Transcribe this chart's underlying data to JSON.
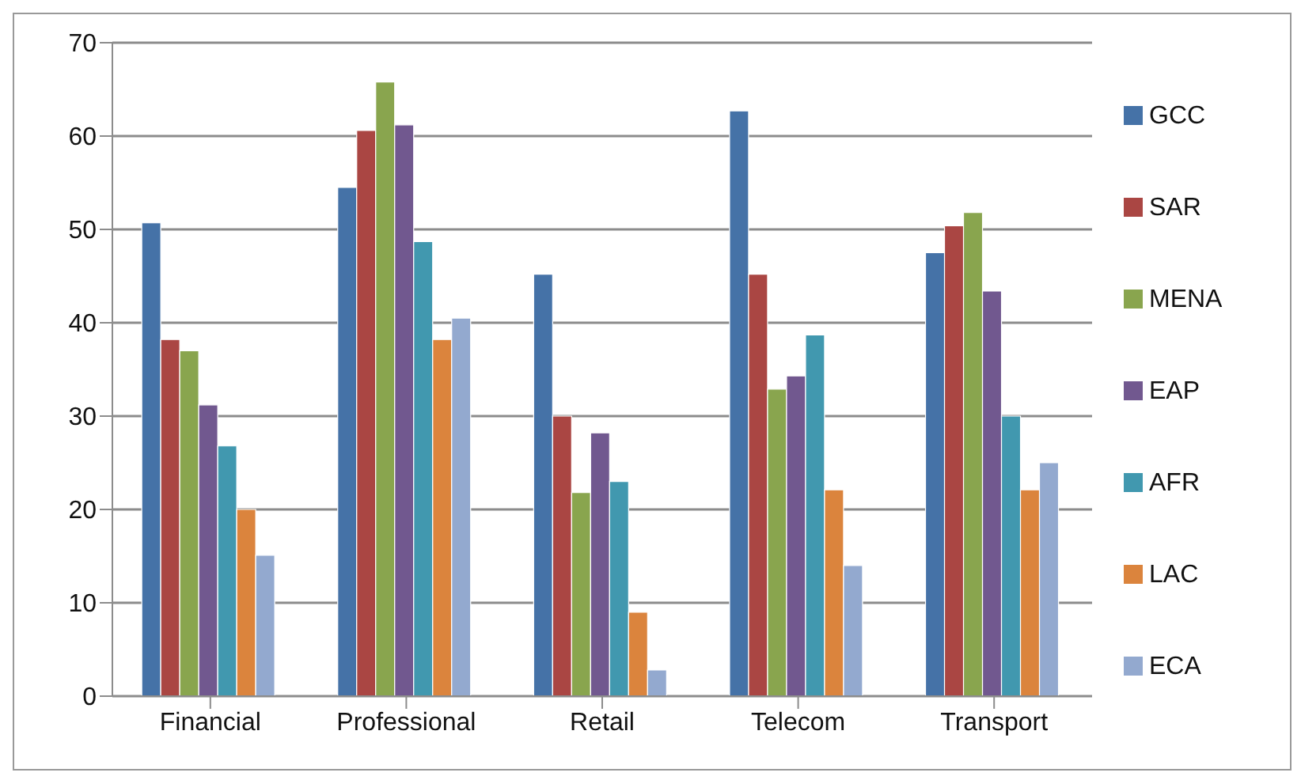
{
  "chart_data": {
    "type": "bar",
    "categories": [
      "Financial",
      "Professional",
      "Retail",
      "Telecom",
      "Transport"
    ],
    "series": [
      {
        "name": "GCC",
        "color": "#4572a7",
        "values": [
          50.7,
          54.5,
          45.2,
          62.7,
          47.5
        ]
      },
      {
        "name": "SAR",
        "color": "#aa4643",
        "values": [
          38.2,
          60.6,
          30,
          45.2,
          50.4
        ]
      },
      {
        "name": "MENA",
        "color": "#89a54e",
        "values": [
          37,
          65.8,
          21.8,
          32.9,
          51.8
        ]
      },
      {
        "name": "EAP",
        "color": "#71588f",
        "values": [
          31.2,
          61.2,
          28.2,
          34.3,
          43.4
        ]
      },
      {
        "name": "AFR",
        "color": "#4198af",
        "values": [
          26.8,
          48.7,
          23,
          38.7,
          30
        ]
      },
      {
        "name": "LAC",
        "color": "#db843d",
        "values": [
          20,
          38.2,
          9,
          22.1,
          22.1
        ]
      },
      {
        "name": "ECA",
        "color": "#93a9cf",
        "values": [
          15.1,
          40.5,
          2.8,
          14,
          25
        ]
      }
    ],
    "ylim": [
      0,
      70
    ],
    "yticks": [
      0,
      10,
      20,
      30,
      40,
      50,
      60,
      70
    ],
    "grid": "y",
    "legend": "right"
  }
}
